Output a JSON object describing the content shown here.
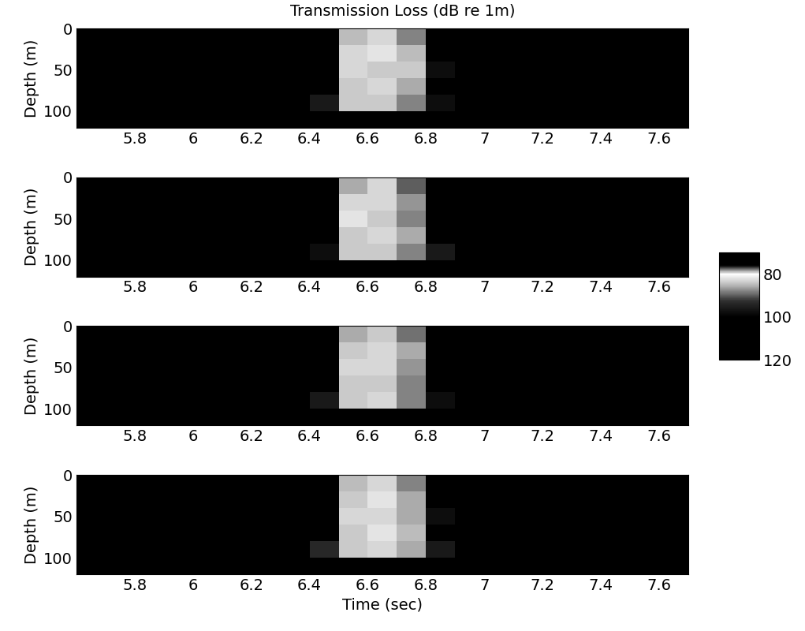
{
  "chart_data": {
    "type": "heatmap",
    "title": "Transmission Loss (dB re 1m)",
    "x_label": "Time (sec)",
    "y_label": "Depth (m)",
    "xlim": [
      5.6,
      7.7
    ],
    "xticks": [
      5.8,
      6,
      6.2,
      6.4,
      6.6,
      6.8,
      7,
      7.2,
      7.4,
      7.6
    ],
    "ylim": [
      120,
      0
    ],
    "yticks": [
      0,
      50,
      100
    ],
    "x_edges": [
      5.6,
      5.7,
      5.8,
      5.9,
      6.0,
      6.1,
      6.2,
      6.3,
      6.4,
      6.5,
      6.6,
      6.7,
      6.8,
      6.9,
      7.0,
      7.1,
      7.2,
      7.3,
      7.4,
      7.5,
      7.6,
      7.7
    ],
    "y_edges": [
      0,
      20,
      40,
      60,
      80,
      100,
      120
    ],
    "colorbar": {
      "range": [
        70,
        120
      ],
      "ticks": [
        80,
        100,
        120
      ]
    },
    "panels": [
      {
        "cells": [
          [
            120,
            120,
            120,
            120,
            120,
            120,
            120,
            120,
            108,
            85,
            83,
            88,
            104,
            114,
            120,
            120,
            120,
            120,
            120,
            120,
            120
          ],
          [
            120,
            120,
            120,
            120,
            120,
            120,
            120,
            120,
            102,
            83,
            82,
            85,
            100,
            112,
            120,
            120,
            120,
            120,
            120,
            120,
            120
          ],
          [
            120,
            120,
            120,
            120,
            120,
            120,
            120,
            120,
            100,
            83,
            84,
            84,
            98,
            110,
            120,
            120,
            120,
            120,
            120,
            120,
            120
          ],
          [
            120,
            120,
            120,
            120,
            120,
            120,
            120,
            120,
            103,
            84,
            83,
            86,
            100,
            112,
            120,
            120,
            120,
            120,
            120,
            120,
            120
          ],
          [
            120,
            120,
            120,
            120,
            120,
            120,
            120,
            110,
            96,
            84,
            84,
            88,
            98,
            106,
            120,
            120,
            120,
            120,
            120,
            120,
            120
          ],
          [
            120,
            120,
            120,
            120,
            120,
            120,
            120,
            120,
            120,
            120,
            120,
            120,
            120,
            120,
            120,
            120,
            120,
            120,
            120,
            120,
            120
          ]
        ]
      },
      {
        "cells": [
          [
            120,
            120,
            120,
            120,
            120,
            120,
            120,
            120,
            112,
            86,
            83,
            90,
            106,
            116,
            120,
            120,
            120,
            120,
            120,
            120,
            120
          ],
          [
            120,
            120,
            120,
            120,
            120,
            120,
            120,
            120,
            106,
            83,
            83,
            87,
            102,
            114,
            120,
            120,
            120,
            120,
            120,
            120,
            120
          ],
          [
            120,
            120,
            120,
            120,
            120,
            120,
            120,
            120,
            104,
            82,
            84,
            88,
            104,
            114,
            120,
            120,
            120,
            120,
            120,
            120,
            120
          ],
          [
            120,
            120,
            120,
            120,
            120,
            120,
            120,
            120,
            106,
            84,
            83,
            86,
            102,
            112,
            120,
            120,
            120,
            120,
            120,
            120,
            120
          ],
          [
            120,
            120,
            120,
            120,
            120,
            120,
            120,
            114,
            98,
            84,
            84,
            88,
            96,
            108,
            120,
            120,
            120,
            120,
            120,
            120,
            120
          ],
          [
            120,
            120,
            120,
            120,
            120,
            120,
            120,
            120,
            120,
            120,
            120,
            120,
            120,
            120,
            120,
            120,
            120,
            120,
            120,
            120,
            120
          ]
        ]
      },
      {
        "cells": [
          [
            120,
            120,
            120,
            120,
            120,
            120,
            120,
            120,
            110,
            86,
            84,
            89,
            106,
            116,
            120,
            120,
            120,
            120,
            120,
            120,
            120
          ],
          [
            120,
            120,
            120,
            120,
            120,
            120,
            120,
            120,
            104,
            84,
            83,
            86,
            102,
            112,
            120,
            120,
            120,
            120,
            120,
            120,
            120
          ],
          [
            120,
            120,
            120,
            120,
            120,
            120,
            120,
            120,
            102,
            83,
            83,
            87,
            100,
            110,
            120,
            120,
            120,
            120,
            120,
            120,
            120
          ],
          [
            120,
            120,
            120,
            120,
            120,
            120,
            120,
            120,
            104,
            84,
            84,
            88,
            102,
            112,
            120,
            120,
            120,
            120,
            120,
            120,
            120
          ],
          [
            120,
            120,
            120,
            120,
            120,
            120,
            120,
            108,
            96,
            84,
            83,
            88,
            98,
            106,
            120,
            120,
            120,
            120,
            120,
            120,
            120
          ],
          [
            120,
            120,
            120,
            120,
            120,
            120,
            120,
            120,
            120,
            120,
            120,
            120,
            120,
            120,
            120,
            120,
            120,
            120,
            120,
            120,
            120
          ]
        ]
      },
      {
        "cells": [
          [
            120,
            120,
            120,
            120,
            120,
            120,
            120,
            120,
            112,
            85,
            83,
            88,
            104,
            114,
            120,
            120,
            120,
            120,
            120,
            120,
            120
          ],
          [
            120,
            120,
            120,
            120,
            120,
            120,
            120,
            120,
            104,
            84,
            82,
            86,
            100,
            112,
            120,
            120,
            120,
            120,
            120,
            120,
            120
          ],
          [
            120,
            120,
            120,
            120,
            120,
            120,
            120,
            120,
            102,
            83,
            83,
            86,
            98,
            110,
            120,
            120,
            120,
            120,
            120,
            120,
            120
          ],
          [
            120,
            120,
            120,
            120,
            120,
            120,
            120,
            120,
            104,
            84,
            82,
            85,
            100,
            110,
            120,
            120,
            120,
            120,
            120,
            120,
            120
          ],
          [
            120,
            120,
            120,
            120,
            120,
            120,
            120,
            106,
            94,
            84,
            83,
            86,
            96,
            104,
            120,
            120,
            120,
            120,
            120,
            120,
            120
          ],
          [
            120,
            120,
            120,
            120,
            120,
            120,
            120,
            120,
            120,
            120,
            120,
            120,
            120,
            120,
            120,
            120,
            120,
            120,
            120,
            120,
            120
          ]
        ]
      }
    ]
  }
}
